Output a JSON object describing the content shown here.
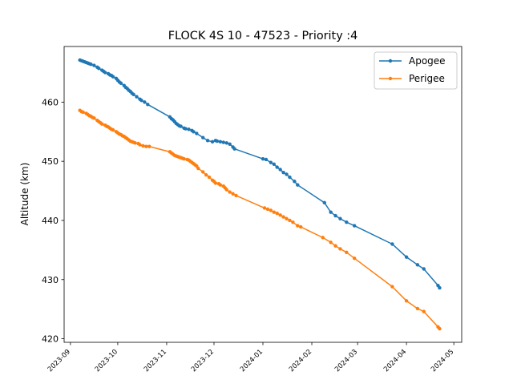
{
  "chart_data": {
    "type": "line",
    "title": "FLOCK 4S 10 - 47523 - Priority :4",
    "xlabel": "",
    "ylabel": "Altitude (km)",
    "xlim": [
      "2023-08-28",
      "2024-05-06"
    ],
    "ylim": [
      419.4,
      469.4
    ],
    "x_ticks": [
      "2023-09-01",
      "2023-10-01",
      "2023-11-01",
      "2023-12-01",
      "2024-01-01",
      "2024-02-01",
      "2024-03-01",
      "2024-04-01",
      "2024-05-01"
    ],
    "x_tick_labels": [
      "2023-09",
      "2023-10",
      "2023-11",
      "2023-12",
      "2024-01",
      "2024-02",
      "2024-03",
      "2024-04",
      "2024-05"
    ],
    "y_ticks": [
      420,
      430,
      440,
      450,
      460
    ],
    "grid": false,
    "legend_position": "top-right",
    "series": [
      {
        "name": "Apogee",
        "color": "#1f77b4",
        "marker": "circle",
        "points": [
          [
            "2023-09-07",
            467.1
          ],
          [
            "2023-09-08",
            467.0
          ],
          [
            "2023-09-09",
            466.9
          ],
          [
            "2023-09-10",
            466.8
          ],
          [
            "2023-09-11",
            466.7
          ],
          [
            "2023-09-12",
            466.6
          ],
          [
            "2023-09-13",
            466.5
          ],
          [
            "2023-09-14",
            466.4
          ],
          [
            "2023-09-16",
            466.2
          ],
          [
            "2023-09-18",
            465.9
          ],
          [
            "2023-09-19",
            465.7
          ],
          [
            "2023-09-21",
            465.4
          ],
          [
            "2023-09-22",
            465.2
          ],
          [
            "2023-09-23",
            465.0
          ],
          [
            "2023-09-25",
            464.8
          ],
          [
            "2023-09-26",
            464.6
          ],
          [
            "2023-09-27",
            464.5
          ],
          [
            "2023-09-28",
            464.3
          ],
          [
            "2023-09-30",
            464.0
          ],
          [
            "2023-10-01",
            463.7
          ],
          [
            "2023-10-02",
            463.4
          ],
          [
            "2023-10-03",
            463.2
          ],
          [
            "2023-10-05",
            462.8
          ],
          [
            "2023-10-06",
            462.5
          ],
          [
            "2023-10-07",
            462.3
          ],
          [
            "2023-10-08",
            462.0
          ],
          [
            "2023-10-09",
            461.8
          ],
          [
            "2023-10-10",
            461.5
          ],
          [
            "2023-10-11",
            461.3
          ],
          [
            "2023-10-13",
            460.9
          ],
          [
            "2023-10-15",
            460.5
          ],
          [
            "2023-10-16",
            460.3
          ],
          [
            "2023-10-18",
            460.0
          ],
          [
            "2023-10-20",
            459.6
          ],
          [
            "2023-11-03",
            457.5
          ],
          [
            "2023-11-04",
            457.2
          ],
          [
            "2023-11-05",
            457.0
          ],
          [
            "2023-11-06",
            456.7
          ],
          [
            "2023-11-07",
            456.4
          ],
          [
            "2023-11-08",
            456.2
          ],
          [
            "2023-11-09",
            456.0
          ],
          [
            "2023-11-10",
            455.9
          ],
          [
            "2023-11-12",
            455.6
          ],
          [
            "2023-11-13",
            455.5
          ],
          [
            "2023-11-15",
            455.4
          ],
          [
            "2023-11-17",
            455.2
          ],
          [
            "2023-11-18",
            455.0
          ],
          [
            "2023-11-20",
            454.7
          ],
          [
            "2023-11-24",
            454.0
          ],
          [
            "2023-11-27",
            453.5
          ],
          [
            "2023-11-30",
            453.3
          ],
          [
            "2023-12-02",
            453.5
          ],
          [
            "2023-12-03",
            453.4
          ],
          [
            "2023-12-05",
            453.3
          ],
          [
            "2023-12-07",
            453.2
          ],
          [
            "2023-12-09",
            453.1
          ],
          [
            "2023-12-11",
            452.9
          ],
          [
            "2023-12-13",
            452.4
          ],
          [
            "2023-12-14",
            452.1
          ],
          [
            "2024-01-01",
            450.4
          ],
          [
            "2024-01-03",
            450.3
          ],
          [
            "2024-01-06",
            449.8
          ],
          [
            "2024-01-08",
            449.5
          ],
          [
            "2024-01-10",
            449.0
          ],
          [
            "2024-01-12",
            448.6
          ],
          [
            "2024-01-14",
            448.1
          ],
          [
            "2024-01-16",
            447.8
          ],
          [
            "2024-01-18",
            447.3
          ],
          [
            "2024-01-21",
            446.6
          ],
          [
            "2024-01-23",
            446.0
          ],
          [
            "2024-02-09",
            443.0
          ],
          [
            "2024-02-13",
            441.4
          ],
          [
            "2024-02-16",
            440.8
          ],
          [
            "2024-02-19",
            440.3
          ],
          [
            "2024-02-23",
            439.7
          ],
          [
            "2024-02-28",
            439.1
          ],
          [
            "2024-03-23",
            436.0
          ],
          [
            "2024-04-01",
            433.8
          ],
          [
            "2024-04-08",
            432.5
          ],
          [
            "2024-04-12",
            431.8
          ],
          [
            "2024-04-21",
            429.0
          ],
          [
            "2024-04-22",
            428.6
          ]
        ]
      },
      {
        "name": "Perigee",
        "color": "#ff7f0e",
        "marker": "circle",
        "points": [
          [
            "2023-09-07",
            458.6
          ],
          [
            "2023-09-08",
            458.4
          ],
          [
            "2023-09-09",
            458.3
          ],
          [
            "2023-09-11",
            458.1
          ],
          [
            "2023-09-12",
            457.9
          ],
          [
            "2023-09-13",
            457.7
          ],
          [
            "2023-09-14",
            457.6
          ],
          [
            "2023-09-15",
            457.4
          ],
          [
            "2023-09-16",
            457.3
          ],
          [
            "2023-09-18",
            456.9
          ],
          [
            "2023-09-19",
            456.7
          ],
          [
            "2023-09-20",
            456.5
          ],
          [
            "2023-09-21",
            456.3
          ],
          [
            "2023-09-23",
            456.1
          ],
          [
            "2023-09-24",
            455.9
          ],
          [
            "2023-09-25",
            455.8
          ],
          [
            "2023-09-26",
            455.6
          ],
          [
            "2023-09-27",
            455.4
          ],
          [
            "2023-09-28",
            455.3
          ],
          [
            "2023-09-30",
            455.0
          ],
          [
            "2023-10-01",
            454.8
          ],
          [
            "2023-10-02",
            454.6
          ],
          [
            "2023-10-03",
            454.5
          ],
          [
            "2023-10-04",
            454.3
          ],
          [
            "2023-10-05",
            454.2
          ],
          [
            "2023-10-06",
            454.0
          ],
          [
            "2023-10-07",
            453.8
          ],
          [
            "2023-10-08",
            453.6
          ],
          [
            "2023-10-09",
            453.4
          ],
          [
            "2023-10-10",
            453.3
          ],
          [
            "2023-10-11",
            453.2
          ],
          [
            "2023-10-12",
            453.1
          ],
          [
            "2023-10-14",
            453.0
          ],
          [
            "2023-10-15",
            452.8
          ],
          [
            "2023-10-17",
            452.6
          ],
          [
            "2023-10-19",
            452.5
          ],
          [
            "2023-10-21",
            452.5
          ],
          [
            "2023-11-03",
            451.6
          ],
          [
            "2023-11-04",
            451.4
          ],
          [
            "2023-11-05",
            451.2
          ],
          [
            "2023-11-06",
            451.0
          ],
          [
            "2023-11-07",
            450.9
          ],
          [
            "2023-11-08",
            450.8
          ],
          [
            "2023-11-09",
            450.7
          ],
          [
            "2023-11-10",
            450.6
          ],
          [
            "2023-11-11",
            450.5
          ],
          [
            "2023-11-12",
            450.4
          ],
          [
            "2023-11-14",
            450.3
          ],
          [
            "2023-11-15",
            450.2
          ],
          [
            "2023-11-16",
            450.0
          ],
          [
            "2023-11-17",
            449.8
          ],
          [
            "2023-11-18",
            449.6
          ],
          [
            "2023-11-19",
            449.4
          ],
          [
            "2023-11-20",
            449.2
          ],
          [
            "2023-11-21",
            448.8
          ],
          [
            "2023-11-24",
            448.2
          ],
          [
            "2023-11-26",
            447.7
          ],
          [
            "2023-11-28",
            447.3
          ],
          [
            "2023-11-30",
            446.8
          ],
          [
            "2023-12-01",
            446.6
          ],
          [
            "2023-12-02",
            446.3
          ],
          [
            "2023-12-04",
            446.2
          ],
          [
            "2023-12-05",
            446.0
          ],
          [
            "2023-12-07",
            445.8
          ],
          [
            "2023-12-08",
            445.5
          ],
          [
            "2023-12-09",
            445.2
          ],
          [
            "2023-12-11",
            444.8
          ],
          [
            "2023-12-13",
            444.5
          ],
          [
            "2023-12-15",
            444.2
          ],
          [
            "2024-01-02",
            442.1
          ],
          [
            "2024-01-04",
            441.9
          ],
          [
            "2024-01-06",
            441.7
          ],
          [
            "2024-01-08",
            441.4
          ],
          [
            "2024-01-10",
            441.2
          ],
          [
            "2024-01-12",
            440.9
          ],
          [
            "2024-01-14",
            440.6
          ],
          [
            "2024-01-16",
            440.3
          ],
          [
            "2024-01-18",
            440.0
          ],
          [
            "2024-01-20",
            439.7
          ],
          [
            "2024-01-23",
            439.1
          ],
          [
            "2024-01-25",
            438.9
          ],
          [
            "2024-02-08",
            437.1
          ],
          [
            "2024-02-13",
            436.3
          ],
          [
            "2024-02-16",
            435.7
          ],
          [
            "2024-02-19",
            435.2
          ],
          [
            "2024-02-23",
            434.6
          ],
          [
            "2024-02-28",
            433.6
          ],
          [
            "2024-03-23",
            428.8
          ],
          [
            "2024-04-01",
            426.4
          ],
          [
            "2024-04-08",
            425.1
          ],
          [
            "2024-04-12",
            424.6
          ],
          [
            "2024-04-21",
            422.0
          ],
          [
            "2024-04-22",
            421.7
          ]
        ]
      }
    ]
  }
}
